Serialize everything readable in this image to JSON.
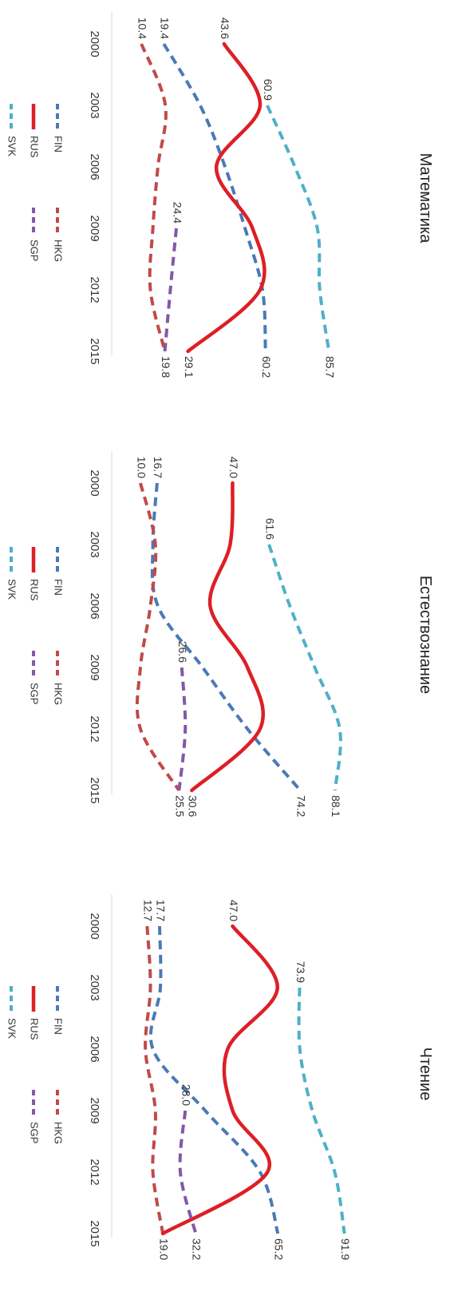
{
  "chart_data": [
    {
      "type": "line",
      "title": "Математика",
      "x": [
        2000,
        2003,
        2006,
        2009,
        2012,
        2015
      ],
      "series": [
        {
          "name": "FIN",
          "color": "#4a7ab5",
          "dash": true,
          "values": [
            19.4,
            34.0,
            44.0,
            52.0,
            59.0,
            60.2
          ],
          "labels": [
            {
              "x": 2000,
              "text": "19.4"
            },
            {
              "x": 2015,
              "text": "60.2"
            }
          ]
        },
        {
          "name": "HKG",
          "color": "#c04a4a",
          "dash": true,
          "values": [
            10.4,
            20.0,
            17.0,
            15.0,
            14.0,
            19.8
          ],
          "labels": [
            {
              "x": 2000,
              "text": "10.4"
            }
          ]
        },
        {
          "name": "RUS",
          "color": "#dd1f26",
          "dash": false,
          "values": [
            43.6,
            58.0,
            40.5,
            55.0,
            58.0,
            29.1
          ],
          "labels": [
            {
              "x": 2000,
              "text": "43.6"
            },
            {
              "x": 2015,
              "text": "29.1"
            }
          ]
        },
        {
          "name": "SGP",
          "color": "#8457a8",
          "dash": true,
          "values": [
            null,
            null,
            null,
            24.4,
            22.0,
            19.8
          ],
          "labels": [
            {
              "x": 2009,
              "text": "24.4"
            },
            {
              "x": 2015,
              "text": "19.8"
            }
          ]
        },
        {
          "name": "SVK",
          "color": "#4fb0c8",
          "dash": true,
          "values": [
            null,
            60.9,
            72.0,
            81.0,
            82.0,
            85.7
          ],
          "labels": [
            {
              "x": 2003,
              "text": "60.9"
            },
            {
              "x": 2015,
              "text": "85.7"
            }
          ]
        }
      ]
    },
    {
      "type": "line",
      "title": "Естествознание",
      "x": [
        2000,
        2003,
        2006,
        2009,
        2012,
        2015
      ],
      "series": [
        {
          "name": "FIN",
          "color": "#4a7ab5",
          "dash": true,
          "values": [
            16.7,
            15.0,
            17.0,
            35.0,
            53.0,
            74.2
          ],
          "labels": [
            {
              "x": 2000,
              "text": "16.7"
            },
            {
              "x": 2015,
              "text": "74.2"
            }
          ]
        },
        {
          "name": "HKG",
          "color": "#c04a4a",
          "dash": true,
          "values": [
            10.0,
            16.0,
            14.0,
            10.0,
            10.0,
            25.5
          ],
          "labels": [
            {
              "x": 2000,
              "text": "10.0"
            }
          ]
        },
        {
          "name": "RUS",
          "color": "#dd1f26",
          "dash": false,
          "values": [
            47.0,
            46.0,
            38.0,
            53.0,
            58.0,
            30.6
          ],
          "labels": [
            {
              "x": 2000,
              "text": "47.0"
            },
            {
              "x": 2015,
              "text": "30.6"
            }
          ]
        },
        {
          "name": "SGP",
          "color": "#8457a8",
          "dash": true,
          "values": [
            null,
            null,
            null,
            26.6,
            28.0,
            25.5
          ],
          "labels": [
            {
              "x": 2009,
              "text": "26.6"
            },
            {
              "x": 2015,
              "text": "25.5"
            }
          ]
        },
        {
          "name": "SVK",
          "color": "#4fb0c8",
          "dash": true,
          "values": [
            null,
            61.6,
            70.0,
            80.0,
            90.0,
            88.1
          ],
          "labels": [
            {
              "x": 2003,
              "text": "61.6"
            },
            {
              "x": 2015,
              "text": "88.1"
            }
          ]
        }
      ]
    },
    {
      "type": "line",
      "title": "Чтение",
      "x": [
        2000,
        2003,
        2006,
        2009,
        2012,
        2015
      ],
      "series": [
        {
          "name": "FIN",
          "color": "#4a7ab5",
          "dash": true,
          "values": [
            17.7,
            18.0,
            15.0,
            36.0,
            58.0,
            65.2
          ],
          "labels": [
            {
              "x": 2000,
              "text": "17.7"
            },
            {
              "x": 2015,
              "text": "65.2"
            }
          ]
        },
        {
          "name": "HKG",
          "color": "#c04a4a",
          "dash": true,
          "values": [
            12.7,
            14.0,
            12.0,
            16.0,
            15.0,
            19.0
          ],
          "labels": [
            {
              "x": 2000,
              "text": "12.7"
            }
          ]
        },
        {
          "name": "RUS",
          "color": "#dd1f26",
          "dash": false,
          "values": [
            47.0,
            65.0,
            45.0,
            47.0,
            61.0,
            19.0
          ],
          "labels": [
            {
              "x": 2000,
              "text": "47.0"
            },
            {
              "x": 2015,
              "text": "19.0"
            }
          ]
        },
        {
          "name": "SGP",
          "color": "#8457a8",
          "dash": true,
          "values": [
            null,
            null,
            null,
            28.0,
            26.0,
            32.2
          ],
          "labels": [
            {
              "x": 2009,
              "text": "28.0"
            },
            {
              "x": 2015,
              "text": "32.2"
            }
          ]
        },
        {
          "name": "SVK",
          "color": "#4fb0c8",
          "dash": true,
          "values": [
            null,
            73.9,
            74.0,
            79.0,
            88.0,
            91.9
          ],
          "labels": [
            {
              "x": 2003,
              "text": "73.9"
            },
            {
              "x": 2015,
              "text": "91.9"
            }
          ]
        }
      ]
    }
  ],
  "legend": {
    "rows": [
      [
        {
          "series": "FIN"
        },
        {
          "series": "HKG"
        }
      ],
      [
        {
          "series": "RUS"
        },
        {
          "series": "SGP"
        }
      ],
      [
        {
          "series": "SVK"
        }
      ]
    ]
  }
}
